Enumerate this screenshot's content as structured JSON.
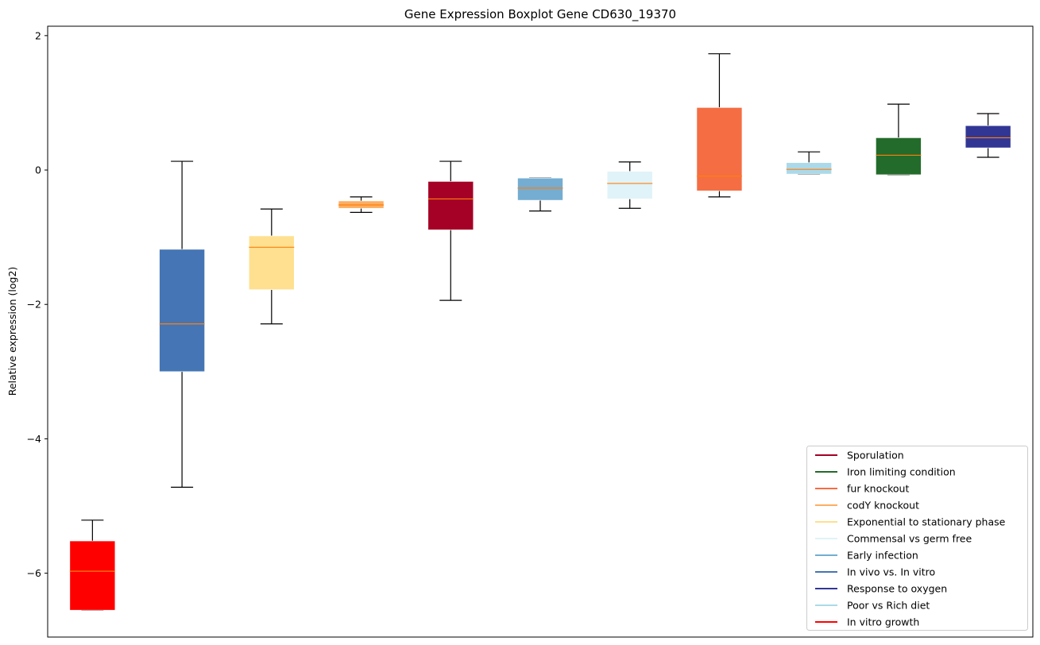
{
  "chart_data": {
    "type": "box",
    "title": "Gene Expression Boxplot Gene CD630_19370",
    "xlabel": "",
    "ylabel": "Relative expression (log2)",
    "ylim": [
      -6.95,
      2.14
    ],
    "yticks": [
      2,
      0,
      -2,
      -4,
      -6
    ],
    "ytick_labels": [
      "2",
      "0",
      "−2",
      "−4",
      "−6"
    ],
    "median_color": "#ff7f0e",
    "legend_position": "lower-right",
    "boxes": [
      {
        "name": "In vitro growth",
        "color": "#ff0000",
        "whislo": -6.55,
        "q1": -6.55,
        "med": -5.97,
        "q3": -5.52,
        "whishi": -5.21
      },
      {
        "name": "In vivo vs. In vitro",
        "color": "#4575b4",
        "whislo": -4.72,
        "q1": -3.0,
        "med": -2.29,
        "q3": -1.18,
        "whishi": 0.13
      },
      {
        "name": "Exponential to stationary phase",
        "color": "#fee090",
        "whislo": -2.29,
        "q1": -1.78,
        "med": -1.15,
        "q3": -0.98,
        "whishi": -0.58
      },
      {
        "name": "codY knockout",
        "color": "#fdae61",
        "whislo": -0.63,
        "q1": -0.57,
        "med": -0.52,
        "q3": -0.46,
        "whishi": -0.4
      },
      {
        "name": "Sporulation",
        "color": "#a50026",
        "whislo": -1.94,
        "q1": -0.89,
        "med": -0.43,
        "q3": -0.17,
        "whishi": 0.13
      },
      {
        "name": "Early infection",
        "color": "#74add1",
        "whislo": -0.61,
        "q1": -0.45,
        "med": -0.27,
        "q3": -0.12,
        "whishi": -0.12
      },
      {
        "name": "Commensal vs germ free",
        "color": "#e0f3f8",
        "whislo": -0.57,
        "q1": -0.43,
        "med": -0.2,
        "q3": -0.02,
        "whishi": 0.12
      },
      {
        "name": "fur knockout",
        "color": "#f46d43",
        "whislo": -0.4,
        "q1": -0.31,
        "med": -0.09,
        "q3": 0.93,
        "whishi": 1.73
      },
      {
        "name": "Poor vs Rich diet",
        "color": "#abd9e9",
        "whislo": -0.06,
        "q1": -0.06,
        "med": 0.01,
        "q3": 0.11,
        "whishi": 0.27
      },
      {
        "name": "Iron limiting condition",
        "color": "#236b2a",
        "whislo": -0.07,
        "q1": -0.07,
        "med": 0.22,
        "q3": 0.48,
        "whishi": 0.98
      },
      {
        "name": "Response to oxygen",
        "color": "#313695",
        "whislo": 0.19,
        "q1": 0.33,
        "med": 0.48,
        "q3": 0.66,
        "whishi": 0.84
      }
    ],
    "legend": [
      {
        "label": "Sporulation",
        "color": "#a50026"
      },
      {
        "label": "Iron limiting condition",
        "color": "#236b2a"
      },
      {
        "label": "fur knockout",
        "color": "#f46d43"
      },
      {
        "label": "codY knockout",
        "color": "#fdae61"
      },
      {
        "label": "Exponential to stationary phase",
        "color": "#fee090"
      },
      {
        "label": "Commensal vs germ free",
        "color": "#e0f3f8"
      },
      {
        "label": "Early infection",
        "color": "#74add1"
      },
      {
        "label": "In vivo vs. In vitro",
        "color": "#4575b4"
      },
      {
        "label": "Response to oxygen",
        "color": "#313695"
      },
      {
        "label": "Poor vs Rich diet",
        "color": "#abd9e9"
      },
      {
        "label": "In vitro growth",
        "color": "#ff0000"
      }
    ]
  }
}
